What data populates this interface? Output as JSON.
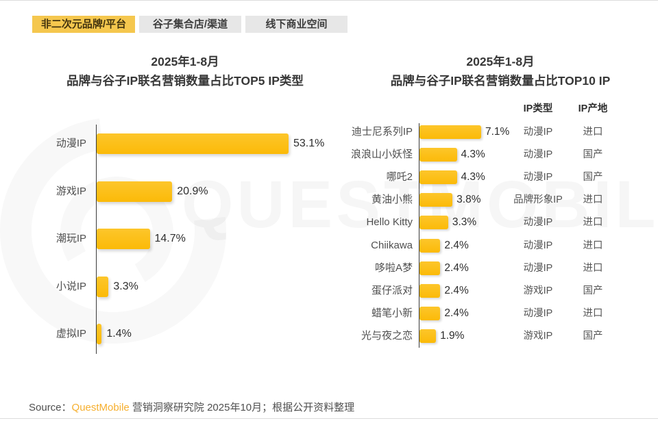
{
  "page": {
    "tabs": [
      {
        "label": "非二次元品牌/平台",
        "active": true
      },
      {
        "label": "谷子集合店/渠道",
        "active": false
      },
      {
        "label": "线下商业空间",
        "active": false
      }
    ],
    "watermark_text": "QUESTMOBILE",
    "source": {
      "prefix": "Source：",
      "brand": "QuestMobile",
      "suffix": " 营销洞察研究院 2025年10月；根据公开资料整理"
    },
    "colors": {
      "bar": "#FBBB08",
      "active_tab_bg": "#F5C74E",
      "inactive_tab_bg": "#E7E7E7"
    }
  },
  "chart_data": [
    {
      "type": "bar",
      "orientation": "horizontal",
      "title_line1": "2025年1-8月",
      "title_line2": "品牌与谷子IP联名营销数量占比TOP5 IP类型",
      "categories": [
        "动漫IP",
        "游戏IP",
        "潮玩IP",
        "小说IP",
        "虚拟IP"
      ],
      "values": [
        53.1,
        20.9,
        14.7,
        3.3,
        1.4
      ],
      "unit": "%",
      "xlim": [
        0,
        60
      ],
      "grid": false,
      "value_labels": "outside-end"
    },
    {
      "type": "bar",
      "orientation": "horizontal",
      "title_line1": "2025年1-8月",
      "title_line2": "品牌与谷子IP联名营销数量占比TOP10 IP",
      "columns": [
        "IP类型",
        "IP产地"
      ],
      "categories": [
        "迪士尼系列IP",
        "浪浪山小妖怪",
        "哪吒2",
        "黄油小熊",
        "Hello Kitty",
        "Chiikawa",
        "哆啦A梦",
        "蛋仔派对",
        "蜡笔小新",
        "光与夜之恋"
      ],
      "values": [
        7.1,
        4.3,
        4.3,
        3.8,
        3.3,
        2.4,
        2.4,
        2.4,
        2.4,
        1.9
      ],
      "ip_type": [
        "动漫IP",
        "动漫IP",
        "动漫IP",
        "品牌形象IP",
        "动漫IP",
        "动漫IP",
        "动漫IP",
        "游戏IP",
        "动漫IP",
        "游戏IP"
      ],
      "ip_origin": [
        "进口",
        "国产",
        "国产",
        "进口",
        "进口",
        "进口",
        "进口",
        "国产",
        "进口",
        "国产"
      ],
      "unit": "%",
      "xlim": [
        0,
        8
      ],
      "grid": false,
      "value_labels": "outside-end"
    }
  ]
}
